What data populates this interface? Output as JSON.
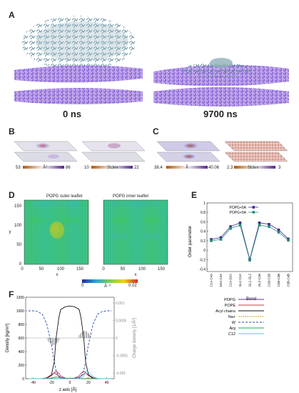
{
  "panels": {
    "A": {
      "letter": "A",
      "time_left": "0 ns",
      "time_right": "9700 ns"
    },
    "B": {
      "letter": "B",
      "cbar1_min": "53",
      "cbar1_unit": "Å²",
      "cbar1_max": "86",
      "cbar2_min": "10",
      "cbar2_unit": "Stdev",
      "cbar2_max": "22"
    },
    "C": {
      "letter": "C",
      "cbar1_min": "38.4",
      "cbar1_unit": "Å",
      "cbar1_max": "40.06",
      "cbar2_min": "2.3",
      "cbar2_unit": "Stdev",
      "cbar2_max": "3"
    },
    "D": {
      "letter": "D",
      "title_left": "POPG outer leaflet",
      "title_right": "POPG inner leaflet",
      "xlabel": "x",
      "ylabel": "y",
      "ticks": [
        "0",
        "50",
        "100",
        "150"
      ],
      "cbar_min": "0",
      "cbar_unit": "Å⁻²",
      "cbar_max": "0.02"
    },
    "E": {
      "letter": "E",
      "xlabel": "Bond",
      "ylabel": "Order parameter"
    },
    "F": {
      "letter": "F",
      "xlabel": "z axis [Å]",
      "ylabel_left": "Density [kg/m³]",
      "ylabel_right": "Charge density [1/Å³]"
    }
  },
  "chart_data": [
    {
      "type": "line",
      "id": "E",
      "categories": [
        "C1A-C4A",
        "D2A-C3A",
        "C1A-D2A",
        "GL1-C1A",
        "GL1-GL2",
        "GL2-C1B",
        "C1B-C2B",
        "C2B-C3B",
        "C3B-C4B"
      ],
      "series": [
        {
          "name": "POPG+5A",
          "color": "#3b2f8f",
          "values": [
            0.23,
            0.27,
            0.5,
            0.58,
            -0.19,
            0.58,
            0.55,
            0.43,
            0.24
          ]
        },
        {
          "name": "POPG+5A",
          "color": "#2a8c7a",
          "values": [
            0.2,
            0.23,
            0.46,
            0.53,
            -0.21,
            0.53,
            0.5,
            0.38,
            0.21
          ]
        }
      ],
      "yticks": [
        "1",
        "0.8",
        "0.6",
        "0.4",
        "0.2",
        "0",
        "-0.2",
        "-0.4"
      ],
      "ylim": [
        -0.45,
        1.0
      ]
    },
    {
      "type": "line",
      "id": "F",
      "x": [
        -45,
        -40,
        -35,
        -30,
        -25,
        -20,
        -17,
        -15,
        -12,
        -10,
        -5,
        0,
        5,
        10,
        12,
        15,
        17,
        20,
        25,
        30,
        35,
        40,
        45
      ],
      "series": [
        {
          "name": "POPG",
          "color": "#6a2ca0",
          "values": [
            0,
            0,
            0,
            2,
            15,
            55,
            85,
            70,
            40,
            20,
            5,
            3,
            5,
            20,
            40,
            70,
            85,
            55,
            15,
            2,
            0,
            0,
            0
          ]
        },
        {
          "name": "POPE",
          "color": "#c23a3a",
          "values": [
            0,
            0,
            0,
            2,
            10,
            45,
            90,
            110,
            80,
            40,
            10,
            5,
            10,
            40,
            80,
            110,
            90,
            45,
            10,
            2,
            0,
            0,
            0
          ]
        },
        {
          "name": "Acyl chains",
          "color": "#111111",
          "values": [
            0,
            0,
            0,
            0,
            5,
            60,
            250,
            600,
            900,
            1020,
            1060,
            1070,
            1060,
            1020,
            900,
            600,
            250,
            60,
            5,
            0,
            0,
            0,
            0
          ]
        },
        {
          "name": "Na+",
          "color": "#d4a017",
          "values": [
            2,
            2,
            2,
            3,
            6,
            10,
            8,
            4,
            1,
            0,
            0,
            0,
            0,
            0,
            1,
            4,
            8,
            10,
            6,
            3,
            2,
            2,
            2
          ]
        },
        {
          "name": "W",
          "color": "#2547a8",
          "values": [
            1000,
            1000,
            990,
            950,
            800,
            500,
            250,
            120,
            30,
            5,
            0,
            0,
            0,
            5,
            30,
            120,
            250,
            500,
            800,
            950,
            990,
            1000,
            1000
          ]
        },
        {
          "name": "Arg",
          "color": "#2aa05a",
          "values": [
            0,
            0,
            0,
            0,
            2,
            10,
            20,
            25,
            18,
            8,
            2,
            0,
            0,
            0,
            0,
            0,
            0,
            0,
            0,
            0,
            0,
            0,
            0
          ]
        },
        {
          "name": "C12",
          "color": "#55c8e8",
          "values": [
            0,
            0,
            0,
            0,
            0,
            0,
            0,
            0,
            0,
            0,
            0,
            0,
            0,
            0,
            5,
            40,
            110,
            100,
            30,
            3,
            0,
            0,
            0
          ]
        }
      ],
      "xticks": [
        "-40",
        "-20",
        "0",
        "20",
        "40"
      ],
      "yticks_left": [
        "0",
        "200",
        "400",
        "600",
        "800",
        "1000",
        "1200"
      ],
      "yticks_right": [
        "-0.001",
        "-0.0005",
        "0",
        "0.0005",
        "0.001"
      ],
      "xlim": [
        -48,
        48
      ],
      "ylim": [
        0,
        1200
      ]
    }
  ]
}
